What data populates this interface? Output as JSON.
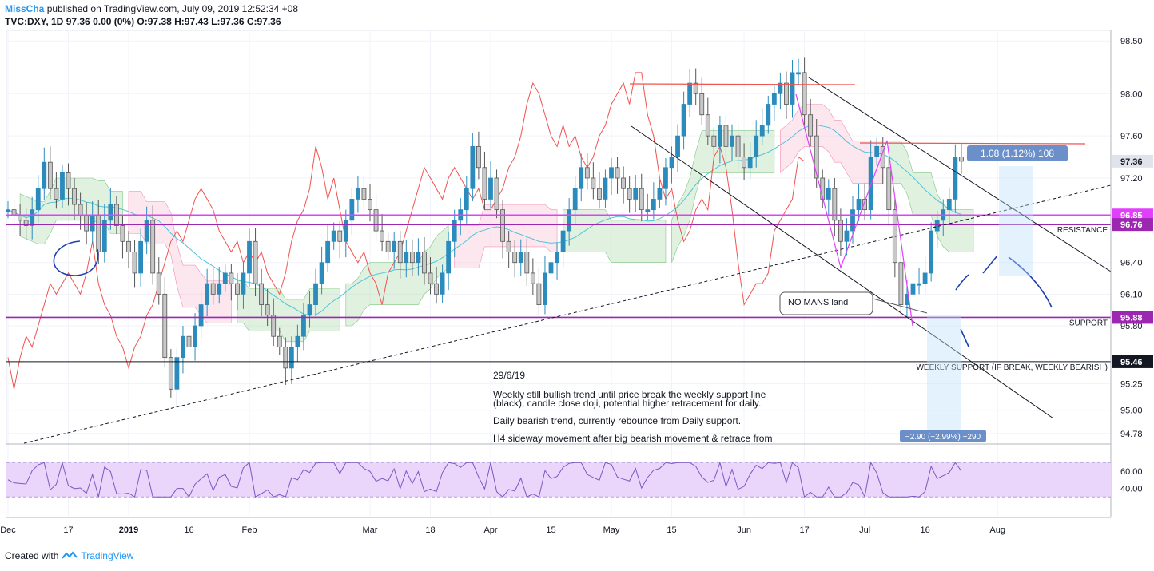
{
  "header": {
    "author": "MissCha",
    "published": "published on TradingView.com, July 09, 2019 12:52:34 +08",
    "symbol_line": "TVC:DXY, 1D",
    "ohlc": "97.36 0.00 (0%) O:97.38 H:97.43 L:97.36 C:97.36"
  },
  "footer": {
    "created_with": "Created with",
    "brand": "TradingView"
  },
  "colors": {
    "bull": "#2b8bbd",
    "bear": "#c8c8c8",
    "resistance_line": "#e040fb",
    "support_line": "#9c27b0",
    "red_line": "#f05350",
    "ma_line": "#4fc3d9",
    "cloud_green": "#a5d6a7",
    "cloud_red": "#f8bbd0",
    "rsi_bg": "#ead6fb",
    "rsi_line": "#7e57c2"
  },
  "chart_data": {
    "type": "candlestick",
    "symbol": "DXY",
    "interval": "1D",
    "y_axis": {
      "min": 94.68,
      "max": 98.6,
      "ticks": [
        98.5,
        98.0,
        97.6,
        97.2,
        96.4,
        96.1,
        95.8,
        95.25,
        95.0,
        94.78
      ],
      "tick_labels": [
        "98.50",
        "98.00",
        "97.60",
        "97.20",
        "96.40",
        "96.10",
        "95.80",
        "95.25",
        "95.00",
        "94.78"
      ]
    },
    "x_axis": {
      "labels": [
        "Dec",
        "17",
        "2019",
        "16",
        "Feb",
        "Mar",
        "18",
        "Apr",
        "15",
        "May",
        "15",
        "Jun",
        "17",
        "Jul",
        "16",
        "Aug"
      ],
      "label_index": [
        0,
        10,
        20,
        30,
        40,
        60,
        70,
        80,
        90,
        100,
        110,
        122,
        132,
        142,
        152,
        164
      ]
    },
    "levels": [
      {
        "value": 97.36,
        "label": "97.36",
        "role": "last price"
      },
      {
        "value": 96.85,
        "label": "96.85",
        "role": "resistance top"
      },
      {
        "value": 96.76,
        "label": "96.76",
        "text": "RESISTANCE"
      },
      {
        "value": 95.88,
        "label": "95.88",
        "text": "SUPPORT"
      },
      {
        "value": 95.46,
        "label": "95.46",
        "text": "WEEKLY SUPPORT (IF BREAK, WEEKLY BEARISH)"
      }
    ],
    "annotations": {
      "no_mans_land": "NO MANS land",
      "measure_up": "1.08 (1.12%) 108",
      "measure_down": "−2.90 (−2.99%) −290",
      "note_date": "29/6/19",
      "note_lines": [
        "Weekly still bullish trend until price break the weekly support line",
        "(black), candle close doji, potential higher retracement for daily.",
        "",
        "Daily bearish trend, currently rebounce from Daily support.",
        "",
        "H4 sideway movement after big bearish movement & retrace from"
      ]
    },
    "closes": [
      96.9,
      96.85,
      96.8,
      96.75,
      96.9,
      97.1,
      97.35,
      97.1,
      97.0,
      97.25,
      97.1,
      96.95,
      96.85,
      96.7,
      96.85,
      96.5,
      96.8,
      96.95,
      96.75,
      96.6,
      96.5,
      96.3,
      96.6,
      96.8,
      96.3,
      96.1,
      95.5,
      95.2,
      95.5,
      95.7,
      95.6,
      95.8,
      96.0,
      96.2,
      96.1,
      96.2,
      96.3,
      96.2,
      96.1,
      96.3,
      96.6,
      96.2,
      96.0,
      95.9,
      95.7,
      95.6,
      95.4,
      95.6,
      95.7,
      95.9,
      96.0,
      96.2,
      96.4,
      96.6,
      96.7,
      96.6,
      96.8,
      97.0,
      97.1,
      97.0,
      96.9,
      96.7,
      96.6,
      96.5,
      96.6,
      96.4,
      96.5,
      96.4,
      96.5,
      96.3,
      96.2,
      96.1,
      96.3,
      96.6,
      96.8,
      96.9,
      97.1,
      97.5,
      97.3,
      97.0,
      97.2,
      96.9,
      96.6,
      96.5,
      96.4,
      96.5,
      96.3,
      96.2,
      96.0,
      96.3,
      96.4,
      96.5,
      96.7,
      96.9,
      97.1,
      97.3,
      97.2,
      97.1,
      97.0,
      97.2,
      97.3,
      97.2,
      97.1,
      97.0,
      97.1,
      96.9,
      96.9,
      97.0,
      97.1,
      97.3,
      97.4,
      97.6,
      97.9,
      98.1,
      98.0,
      97.8,
      97.6,
      97.5,
      97.7,
      97.5,
      97.6,
      97.4,
      97.3,
      97.4,
      97.6,
      97.7,
      97.9,
      98.0,
      98.1,
      97.9,
      98.2,
      98.2,
      97.8,
      97.6,
      97.2,
      97.0,
      97.1,
      96.8,
      96.6,
      96.7,
      96.9,
      97.0,
      96.9,
      97.4,
      97.5,
      97.3,
      96.9,
      96.4,
      96.0,
      96.1,
      96.2,
      96.2,
      96.3,
      96.7,
      96.8,
      96.9,
      97.0,
      97.4,
      97.36
    ],
    "rsi": {
      "ticks": [
        60.0,
        40.0
      ],
      "tick_labels": [
        "60.00",
        "40.00"
      ],
      "upper_band": 70,
      "lower_band": 30
    }
  }
}
